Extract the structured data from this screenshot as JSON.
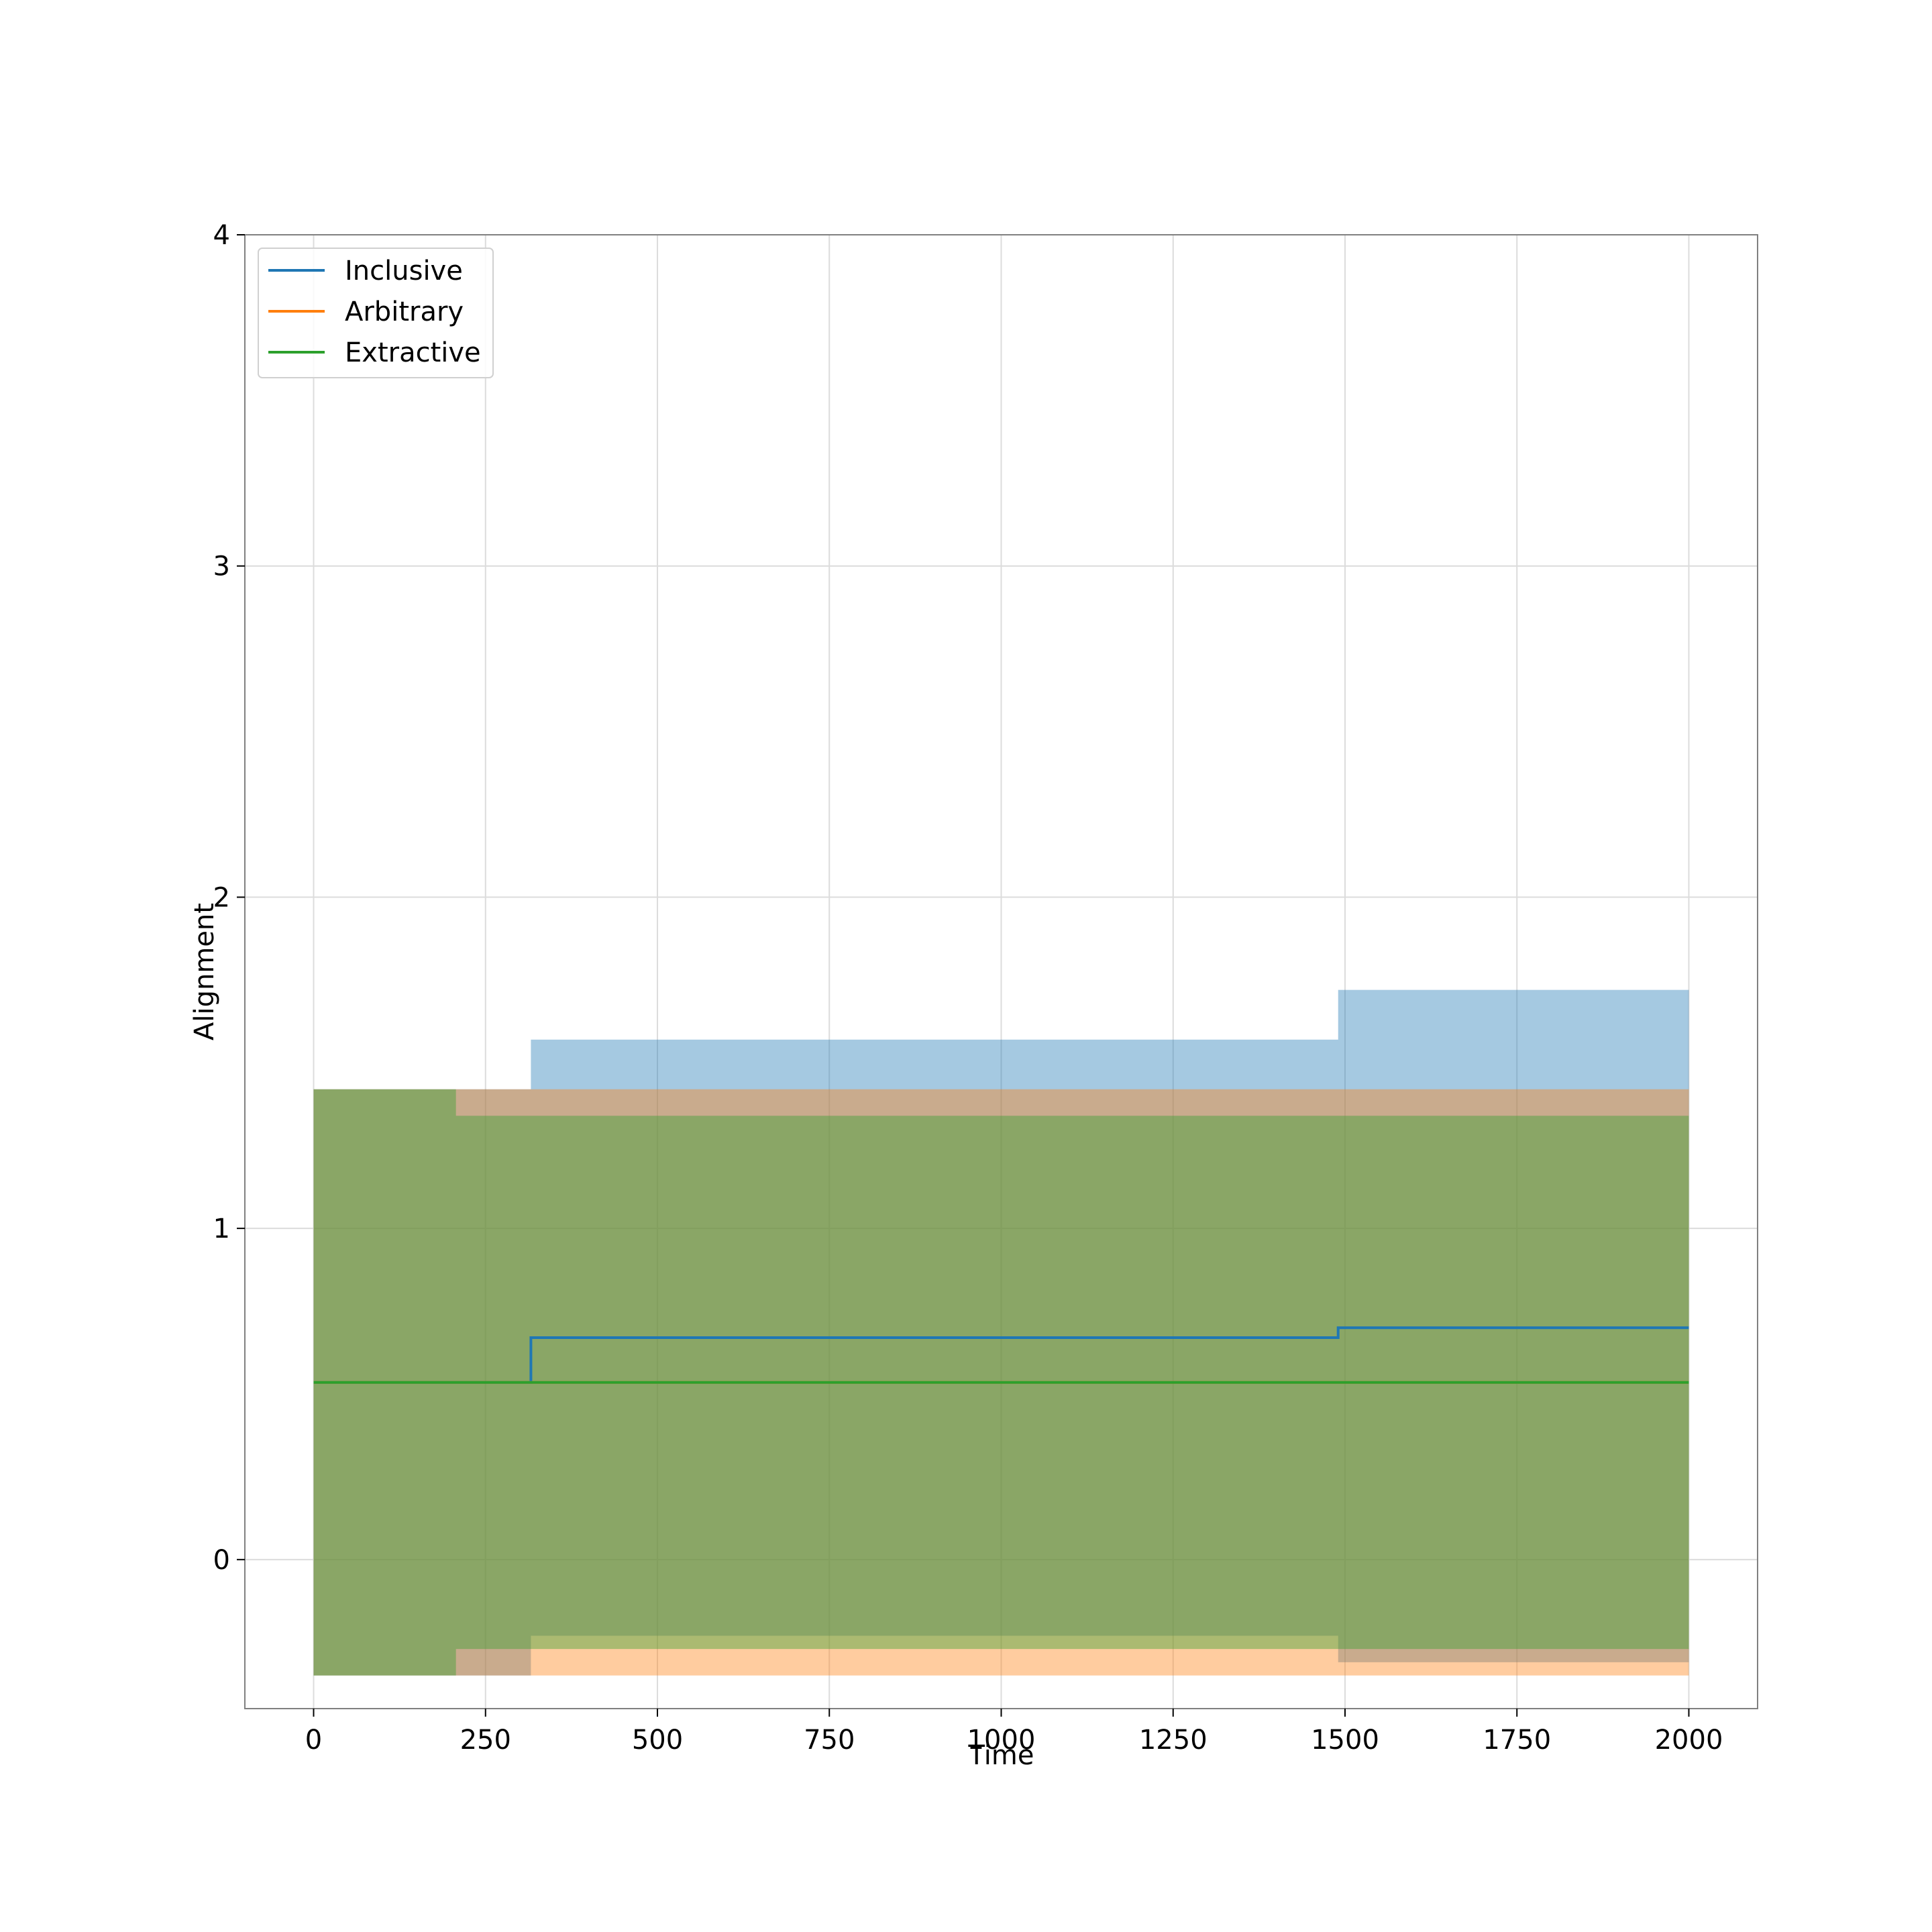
{
  "chart_data": {
    "type": "line",
    "title": "",
    "xlabel": "Time",
    "ylabel": "Alignment",
    "xlim": [
      -100,
      2100
    ],
    "ylim": [
      -0.45,
      4
    ],
    "xticks": [
      0,
      250,
      500,
      750,
      1000,
      1250,
      1500,
      1750,
      2000
    ],
    "yticks": [
      0,
      1,
      2,
      3,
      4
    ],
    "xtick_labels": [
      "0",
      "250",
      "500",
      "750",
      "1000",
      "1250",
      "1500",
      "1750",
      "2000"
    ],
    "ytick_labels": [
      "0",
      "1",
      "2",
      "3",
      "4"
    ],
    "grid": true,
    "legend_position": "upper-left",
    "series": [
      {
        "name": "Inclusive",
        "color": "#1f77b4",
        "x": [
          0,
          316,
          316,
          1490,
          1490,
          2000
        ],
        "y": [
          0.535,
          0.535,
          0.67,
          0.67,
          0.7,
          0.7
        ],
        "band_x": [
          0,
          316,
          316,
          1490,
          1490,
          2000
        ],
        "band_low": [
          -0.35,
          -0.35,
          -0.23,
          -0.23,
          -0.31,
          -0.31
        ],
        "band_high": [
          1.42,
          1.42,
          1.57,
          1.57,
          1.72,
          1.72
        ]
      },
      {
        "name": "Arbitrary",
        "color": "#ff7f0e",
        "x": [
          0,
          2000
        ],
        "y": [
          0.535,
          0.535
        ],
        "band_x": [
          0,
          2000
        ],
        "band_low": [
          -0.35,
          -0.35
        ],
        "band_high": [
          1.42,
          1.42
        ]
      },
      {
        "name": "Extractive",
        "color": "#2ca02c",
        "x": [
          0,
          2000
        ],
        "y": [
          0.535,
          0.535
        ],
        "band_x": [
          0,
          207,
          207,
          2000
        ],
        "band_low": [
          -0.35,
          -0.35,
          -0.27,
          -0.27
        ],
        "band_high": [
          1.42,
          1.42,
          1.34,
          1.34
        ]
      }
    ]
  }
}
